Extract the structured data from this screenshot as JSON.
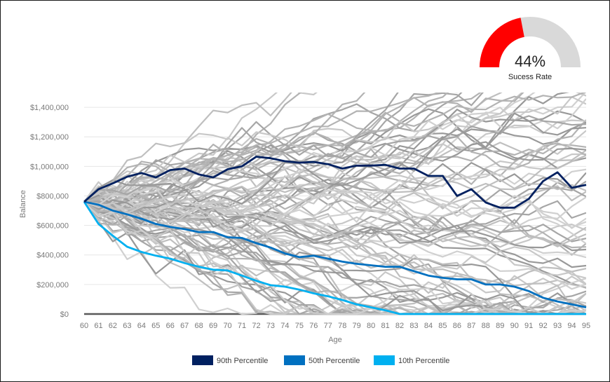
{
  "chart_data": {
    "type": "line",
    "xlabel": "Age",
    "ylabel": "Balance",
    "x": [
      60,
      61,
      62,
      63,
      64,
      65,
      66,
      67,
      68,
      69,
      70,
      71,
      72,
      73,
      74,
      75,
      76,
      77,
      78,
      79,
      80,
      81,
      82,
      83,
      84,
      85,
      86,
      87,
      88,
      89,
      90,
      91,
      92,
      93,
      94,
      95
    ],
    "y_ticks": [
      "$0",
      "$200,000",
      "$400,000",
      "$600,000",
      "$800,000",
      "$1,000,000",
      "$1,200,000",
      "$1,400,000"
    ],
    "ylim": [
      0,
      1500000
    ],
    "grid": true,
    "legend": "bottom",
    "series": [
      {
        "name": "90th Percentile",
        "color": "#002060",
        "values": [
          760000,
          845000,
          885000,
          930000,
          955000,
          925000,
          975000,
          985000,
          945000,
          925000,
          980000,
          1000000,
          1065000,
          1055000,
          1035000,
          1025000,
          1030000,
          1015000,
          985000,
          1005000,
          1005000,
          1010000,
          985000,
          985000,
          935000,
          935000,
          800000,
          845000,
          755000,
          720000,
          720000,
          780000,
          900000,
          960000,
          855000,
          875000
        ]
      },
      {
        "name": "50th Percentile",
        "color": "#0070C0",
        "values": [
          760000,
          740000,
          700000,
          675000,
          645000,
          610000,
          590000,
          575000,
          555000,
          555000,
          520000,
          515000,
          480000,
          450000,
          410000,
          385000,
          395000,
          375000,
          355000,
          340000,
          330000,
          320000,
          320000,
          290000,
          260000,
          245000,
          235000,
          235000,
          200000,
          200000,
          185000,
          155000,
          110000,
          85000,
          65000,
          45000
        ]
      },
      {
        "name": "10th Percentile",
        "color": "#00B0F0",
        "values": [
          760000,
          610000,
          530000,
          455000,
          420000,
          395000,
          375000,
          345000,
          320000,
          300000,
          295000,
          260000,
          225000,
          195000,
          185000,
          165000,
          140000,
          120000,
          95000,
          65000,
          45000,
          25000,
          0,
          0,
          0,
          0,
          0,
          0,
          0,
          0,
          0,
          0,
          0,
          0,
          0,
          0
        ]
      }
    ],
    "background_simulations_color": "#bfbfbf"
  },
  "gauge": {
    "percent_text": "44%",
    "label": "Sucess Rate",
    "value": 0.44,
    "fill_color": "#ff0000",
    "track_color": "#d9d9d9"
  }
}
